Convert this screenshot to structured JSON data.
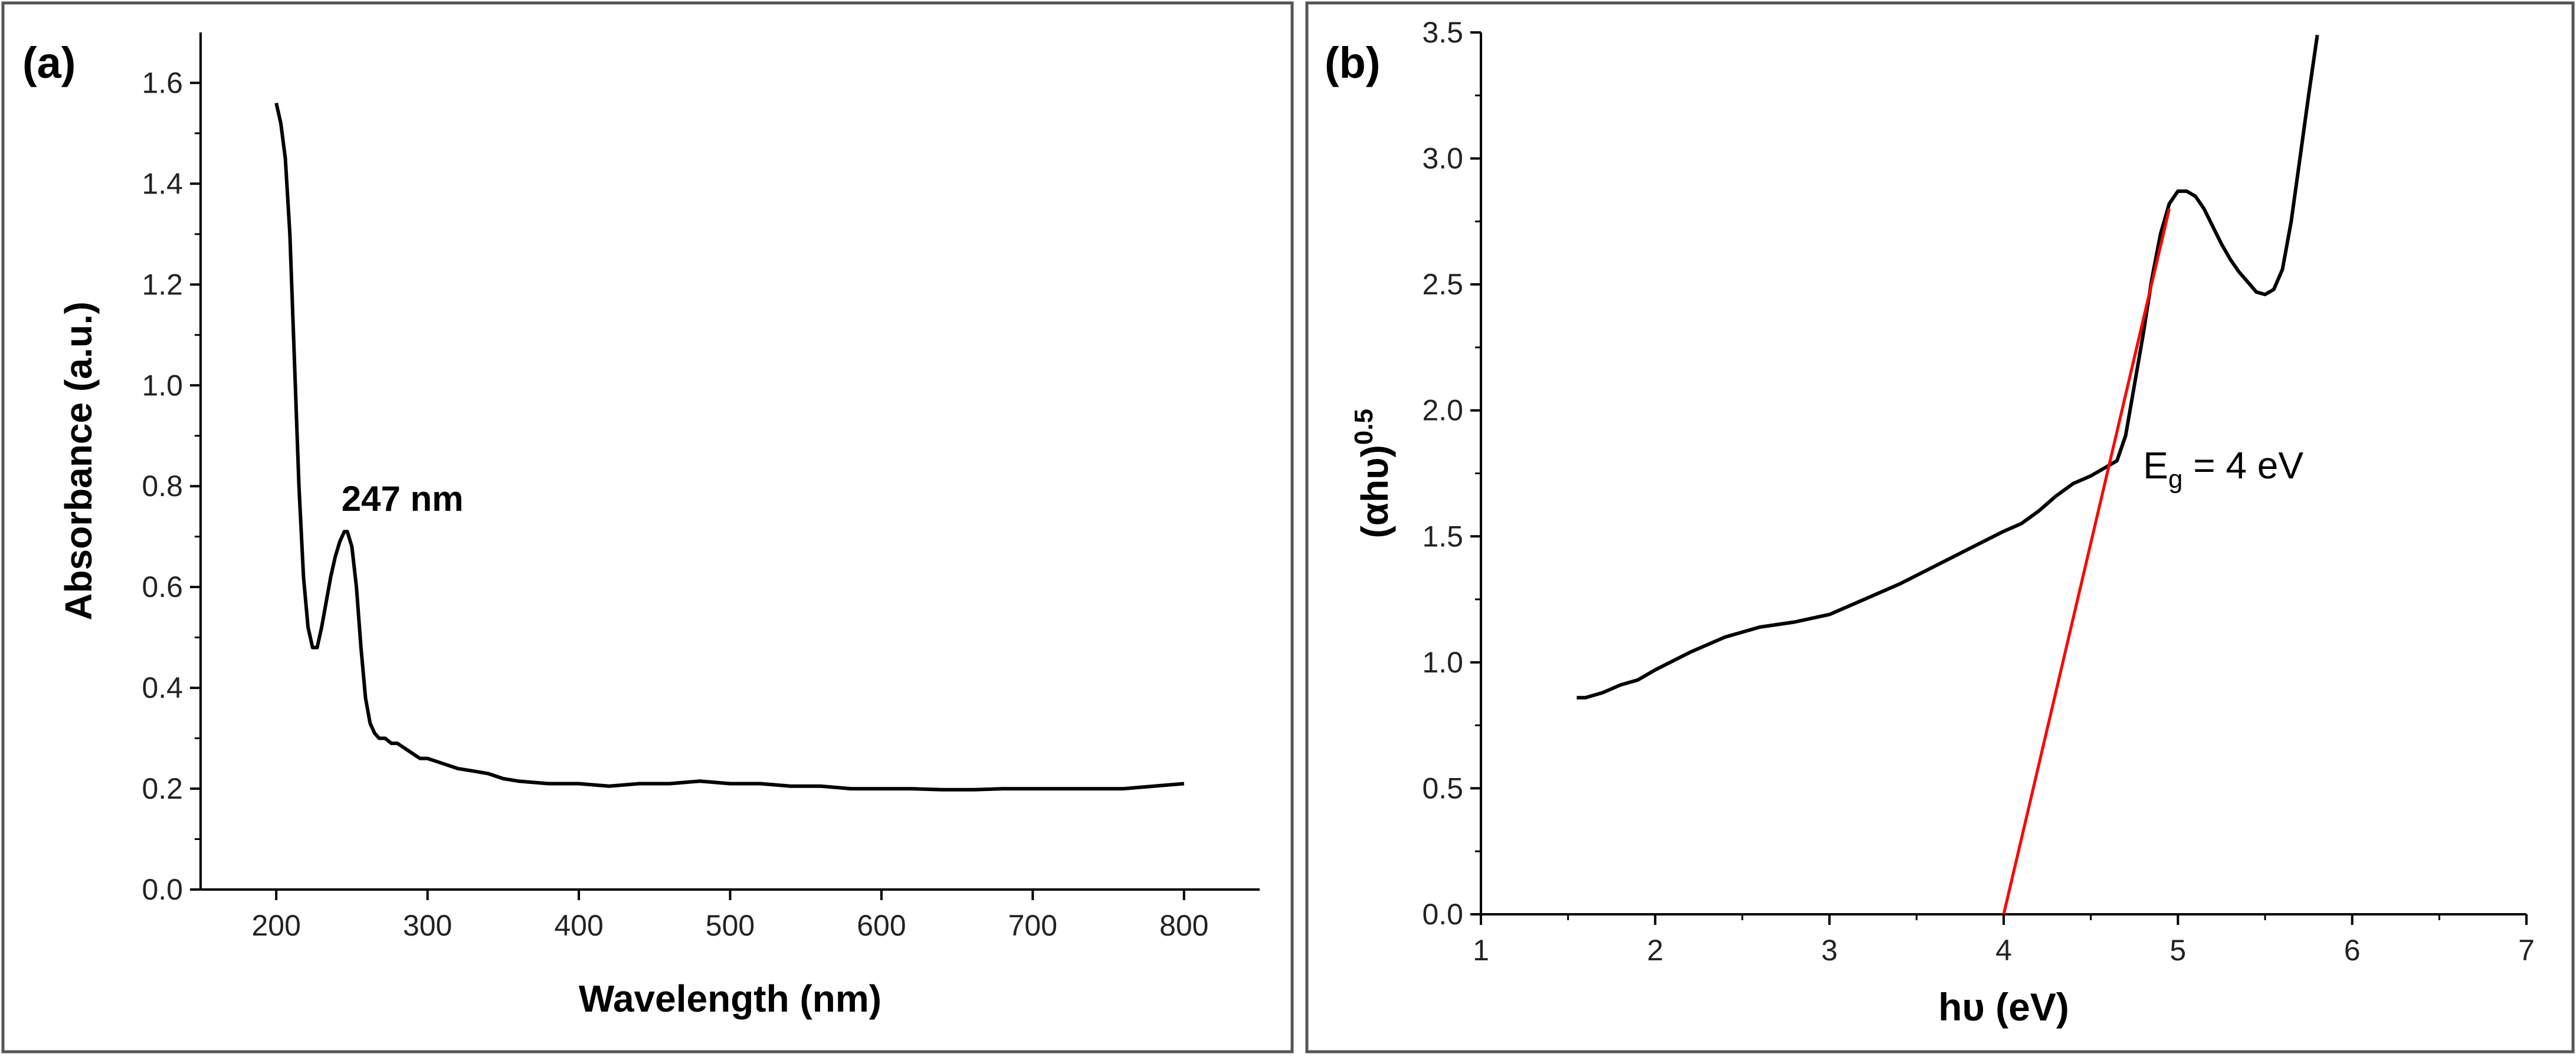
{
  "colors": {
    "frame": "#555555",
    "axis": "#000000",
    "curve": "#000000",
    "fit_line": "#ff0000",
    "background": "#ffffff"
  },
  "chart_data": [
    {
      "panel_label": "(a)",
      "type": "line",
      "title": "",
      "xlabel": "Wavelength (nm)",
      "ylabel": "Absorbance (a.u.)",
      "xlim": [
        150,
        850
      ],
      "ylim": [
        0,
        1.7
      ],
      "xticks": [
        200,
        300,
        400,
        500,
        600,
        700,
        800
      ],
      "xtick_labels": [
        "200",
        "300",
        "400",
        "500",
        "600",
        "700",
        "800"
      ],
      "yticks": [
        0.0,
        0.2,
        0.4,
        0.6,
        0.8,
        1.0,
        1.2,
        1.4,
        1.6
      ],
      "ytick_labels": [
        "0.0",
        "0.2",
        "0.4",
        "0.6",
        "0.8",
        "1.0",
        "1.2",
        "1.4",
        "1.6"
      ],
      "annotation": {
        "text": "247 nm",
        "x": 247,
        "y": 0.71
      },
      "series": [
        {
          "name": "Absorbance",
          "x": [
            200,
            203,
            206,
            209,
            212,
            215,
            218,
            221,
            224,
            227,
            230,
            233,
            236,
            239,
            242,
            245,
            247,
            250,
            253,
            256,
            259,
            262,
            265,
            268,
            272,
            276,
            280,
            285,
            290,
            295,
            300,
            310,
            320,
            330,
            340,
            350,
            360,
            380,
            400,
            420,
            440,
            460,
            480,
            500,
            520,
            540,
            560,
            580,
            600,
            620,
            640,
            660,
            680,
            700,
            720,
            740,
            760,
            780,
            800
          ],
          "y": [
            1.56,
            1.52,
            1.45,
            1.3,
            1.05,
            0.8,
            0.62,
            0.52,
            0.48,
            0.48,
            0.52,
            0.57,
            0.62,
            0.66,
            0.69,
            0.71,
            0.71,
            0.68,
            0.6,
            0.48,
            0.38,
            0.33,
            0.31,
            0.3,
            0.3,
            0.29,
            0.29,
            0.28,
            0.27,
            0.26,
            0.26,
            0.25,
            0.24,
            0.235,
            0.23,
            0.22,
            0.215,
            0.21,
            0.21,
            0.205,
            0.21,
            0.21,
            0.215,
            0.21,
            0.21,
            0.205,
            0.205,
            0.2,
            0.2,
            0.2,
            0.198,
            0.198,
            0.2,
            0.2,
            0.2,
            0.2,
            0.2,
            0.205,
            0.21
          ]
        }
      ]
    },
    {
      "panel_label": "(b)",
      "type": "line",
      "title": "",
      "xlabel": "hυ (eV)",
      "ylabel_main": "(αhυ)",
      "ylabel_sup": "0.5",
      "xlim": [
        1,
        7
      ],
      "ylim": [
        0,
        3.5
      ],
      "xticks": [
        1,
        2,
        3,
        4,
        5,
        6,
        7
      ],
      "xtick_labels": [
        "1",
        "2",
        "3",
        "4",
        "5",
        "6",
        "7"
      ],
      "yticks": [
        0.0,
        0.5,
        1.0,
        1.5,
        2.0,
        2.5,
        3.0,
        3.5
      ],
      "ytick_labels": [
        "0.0",
        "0.5",
        "1.0",
        "1.5",
        "2.0",
        "2.5",
        "3.0",
        "3.5"
      ],
      "annotation": {
        "main": "E",
        "sub": "g",
        "rest": " = 4 eV",
        "x": 4.8,
        "y": 1.73
      },
      "series": [
        {
          "name": "(αhυ)^0.5",
          "color": "#000000",
          "x": [
            1.55,
            1.6,
            1.7,
            1.8,
            1.9,
            2.0,
            2.2,
            2.4,
            2.6,
            2.8,
            3.0,
            3.2,
            3.4,
            3.6,
            3.8,
            4.0,
            4.1,
            4.2,
            4.25,
            4.3,
            4.4,
            4.5,
            4.6,
            4.65,
            4.7,
            4.75,
            4.8,
            4.85,
            4.9,
            4.95,
            5.0,
            5.05,
            5.1,
            5.15,
            5.2,
            5.25,
            5.3,
            5.35,
            5.4,
            5.45,
            5.5,
            5.55,
            5.6,
            5.65,
            5.7,
            5.75,
            5.8
          ],
          "y": [
            0.86,
            0.86,
            0.88,
            0.91,
            0.93,
            0.97,
            1.04,
            1.1,
            1.14,
            1.16,
            1.19,
            1.25,
            1.31,
            1.38,
            1.45,
            1.52,
            1.55,
            1.6,
            1.63,
            1.66,
            1.71,
            1.74,
            1.78,
            1.8,
            1.9,
            2.1,
            2.3,
            2.52,
            2.7,
            2.82,
            2.87,
            2.87,
            2.85,
            2.8,
            2.73,
            2.66,
            2.6,
            2.55,
            2.51,
            2.47,
            2.46,
            2.48,
            2.56,
            2.75,
            3.0,
            3.25,
            3.49
          ]
        },
        {
          "name": "Linear fit",
          "color": "#ff0000",
          "x": [
            4.0,
            4.95
          ],
          "y": [
            0.0,
            2.8
          ]
        }
      ]
    }
  ]
}
